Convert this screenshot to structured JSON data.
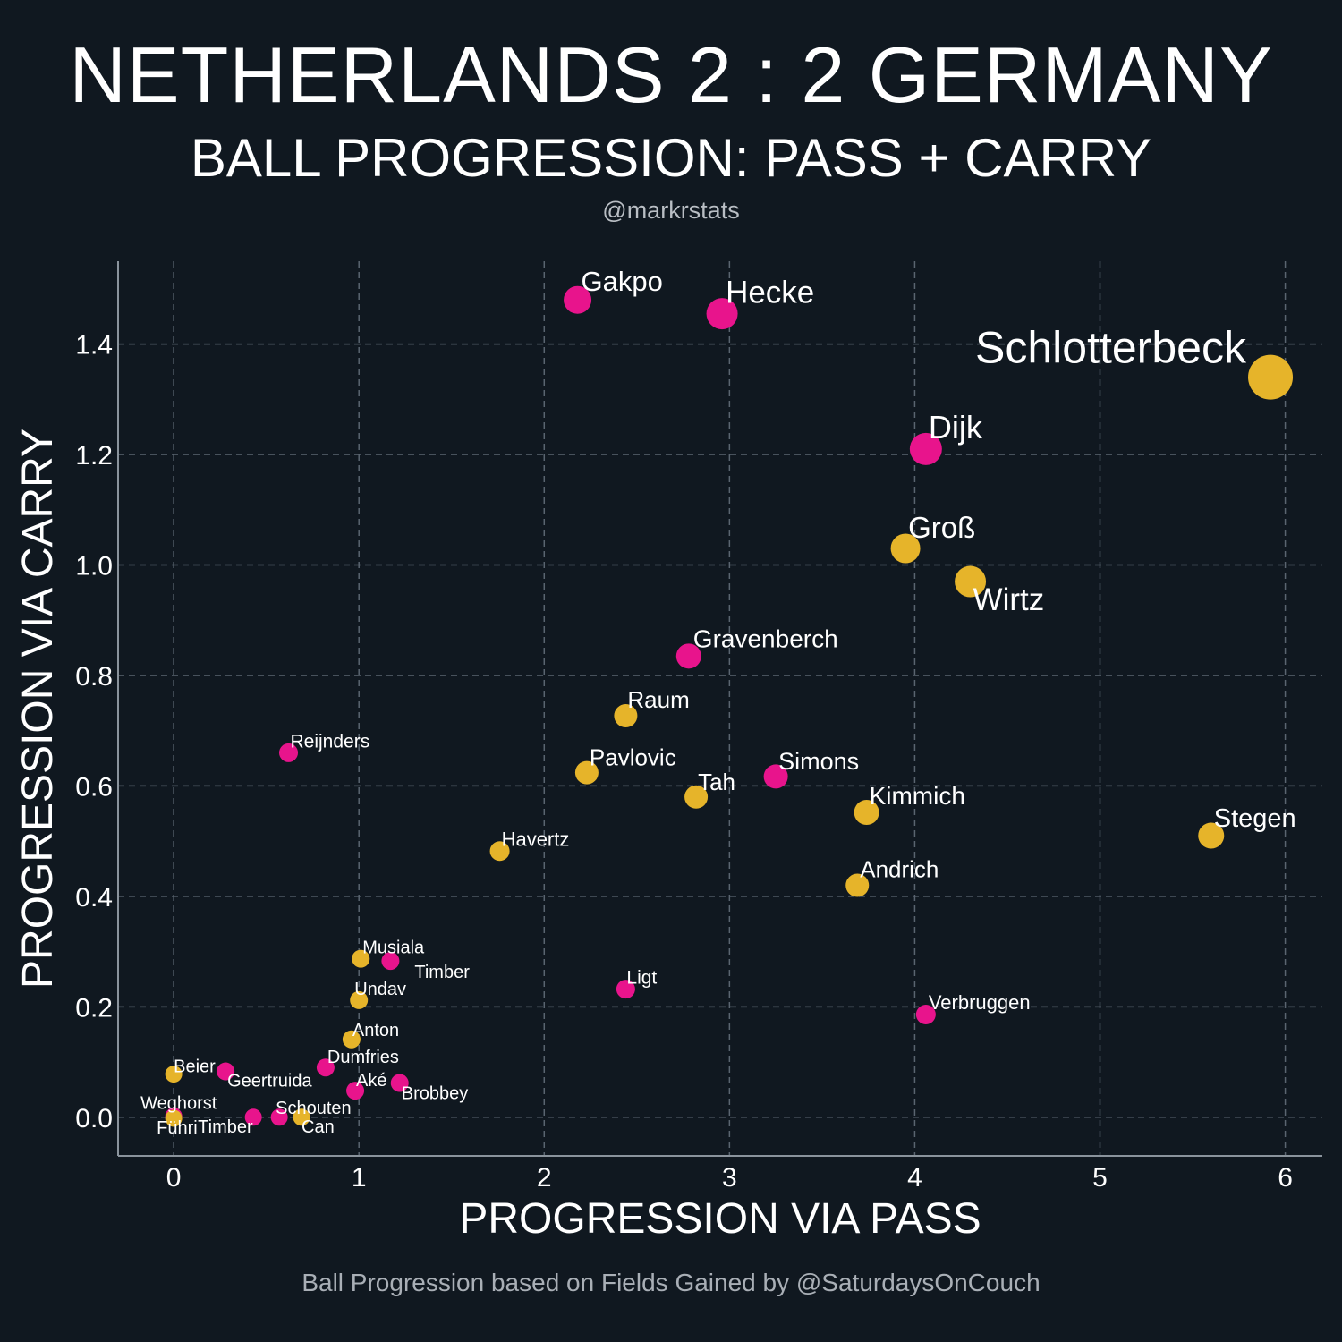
{
  "header": {
    "title": "NETHERLANDS 2 : 2 GERMANY",
    "subtitle": "BALL PROGRESSION: PASS + CARRY",
    "handle": "@markrstats"
  },
  "footer": {
    "note": "Ball Progression based on Fields Gained by @SaturdaysOnCouch"
  },
  "colors": {
    "background": "#101820",
    "netherlands": "#e8148c",
    "germany": "#e6b42a",
    "grid": "#5a6570",
    "axis": "#8a939c"
  },
  "chart_data": {
    "type": "scatter",
    "title": "NETHERLANDS 2 : 2 GERMANY",
    "xlabel": "PROGRESSION VIA PASS",
    "ylabel": "PROGRESSION VIA CARRY",
    "xlim": [
      -0.3,
      6.2
    ],
    "ylim": [
      -0.07,
      1.55
    ],
    "xticks": [
      0,
      1,
      2,
      3,
      4,
      5,
      6
    ],
    "xtick_labels": [
      "0",
      "1",
      "2",
      "3",
      "4",
      "5",
      "6"
    ],
    "yticks": [
      0.0,
      0.2,
      0.4,
      0.6,
      0.8,
      1.0,
      1.2,
      1.4
    ],
    "ytick_labels": [
      "0.0",
      "0.2",
      "0.4",
      "0.6",
      "0.8",
      "1.0",
      "1.2",
      "1.4"
    ],
    "grid": true,
    "points": [
      {
        "label": "Gakpo",
        "x": 2.18,
        "y": 1.48,
        "team": "netherlands",
        "size": 31
      },
      {
        "label": "Hecke",
        "x": 2.96,
        "y": 1.455,
        "team": "netherlands",
        "size": 35
      },
      {
        "label": "Schlotterbeck",
        "x": 5.92,
        "y": 1.34,
        "team": "germany",
        "size": 50
      },
      {
        "label": "Dijk",
        "x": 4.06,
        "y": 1.21,
        "team": "netherlands",
        "size": 36
      },
      {
        "label": "Groß",
        "x": 3.95,
        "y": 1.03,
        "team": "germany",
        "size": 33
      },
      {
        "label": "Wirtz",
        "x": 4.3,
        "y": 0.97,
        "team": "germany",
        "size": 35
      },
      {
        "label": "Gravenberch",
        "x": 2.78,
        "y": 0.835,
        "team": "netherlands",
        "size": 28
      },
      {
        "label": "Raum",
        "x": 2.44,
        "y": 0.727,
        "team": "germany",
        "size": 26
      },
      {
        "label": "Reijnders",
        "x": 0.62,
        "y": 0.66,
        "team": "netherlands",
        "size": 21
      },
      {
        "label": "Pavlovic",
        "x": 2.23,
        "y": 0.624,
        "team": "germany",
        "size": 26
      },
      {
        "label": "Simons",
        "x": 3.25,
        "y": 0.617,
        "team": "netherlands",
        "size": 27
      },
      {
        "label": "Tah",
        "x": 2.82,
        "y": 0.58,
        "team": "germany",
        "size": 26
      },
      {
        "label": "Kimmich",
        "x": 3.74,
        "y": 0.552,
        "team": "germany",
        "size": 28
      },
      {
        "label": "Stegen",
        "x": 5.6,
        "y": 0.51,
        "team": "germany",
        "size": 29
      },
      {
        "label": "Havertz",
        "x": 1.76,
        "y": 0.482,
        "team": "germany",
        "size": 22
      },
      {
        "label": "Andrich",
        "x": 3.69,
        "y": 0.42,
        "team": "germany",
        "size": 26
      },
      {
        "label": "Musiala",
        "x": 1.01,
        "y": 0.287,
        "team": "germany",
        "size": 20
      },
      {
        "label": "Timber",
        "x": 1.17,
        "y": 0.283,
        "team": "netherlands",
        "size": 20
      },
      {
        "label": "Ligt",
        "x": 2.44,
        "y": 0.232,
        "team": "netherlands",
        "size": 21
      },
      {
        "label": "Undav",
        "x": 1.0,
        "y": 0.212,
        "team": "germany",
        "size": 20
      },
      {
        "label": "Verbruggen",
        "x": 4.06,
        "y": 0.186,
        "team": "netherlands",
        "size": 22
      },
      {
        "label": "Anton",
        "x": 0.96,
        "y": 0.141,
        "team": "germany",
        "size": 20
      },
      {
        "label": "Dumfries",
        "x": 0.82,
        "y": 0.09,
        "team": "netherlands",
        "size": 20
      },
      {
        "label": "Beier",
        "x": 0.0,
        "y": 0.078,
        "team": "germany",
        "size": 19
      },
      {
        "label": "Geertruida",
        "x": 0.28,
        "y": 0.083,
        "team": "netherlands",
        "size": 20
      },
      {
        "label": "Aké",
        "x": 0.98,
        "y": 0.048,
        "team": "netherlands",
        "size": 20
      },
      {
        "label": "Brobbey",
        "x": 1.22,
        "y": 0.062,
        "team": "netherlands",
        "size": 20
      },
      {
        "label": "Weghorst",
        "x": 0.0,
        "y": 0.002,
        "team": "netherlands",
        "size": 19
      },
      {
        "label": "Führi",
        "x": 0.0,
        "y": -0.002,
        "team": "germany",
        "size": 19
      },
      {
        "label": "Timber",
        "x": 0.43,
        "y": 0.0,
        "team": "netherlands",
        "size": 19
      },
      {
        "label": "Schouten",
        "x": 0.57,
        "y": 0.0,
        "team": "netherlands",
        "size": 19
      },
      {
        "label": "Can",
        "x": 0.69,
        "y": 0.0,
        "team": "germany",
        "size": 19
      }
    ]
  }
}
